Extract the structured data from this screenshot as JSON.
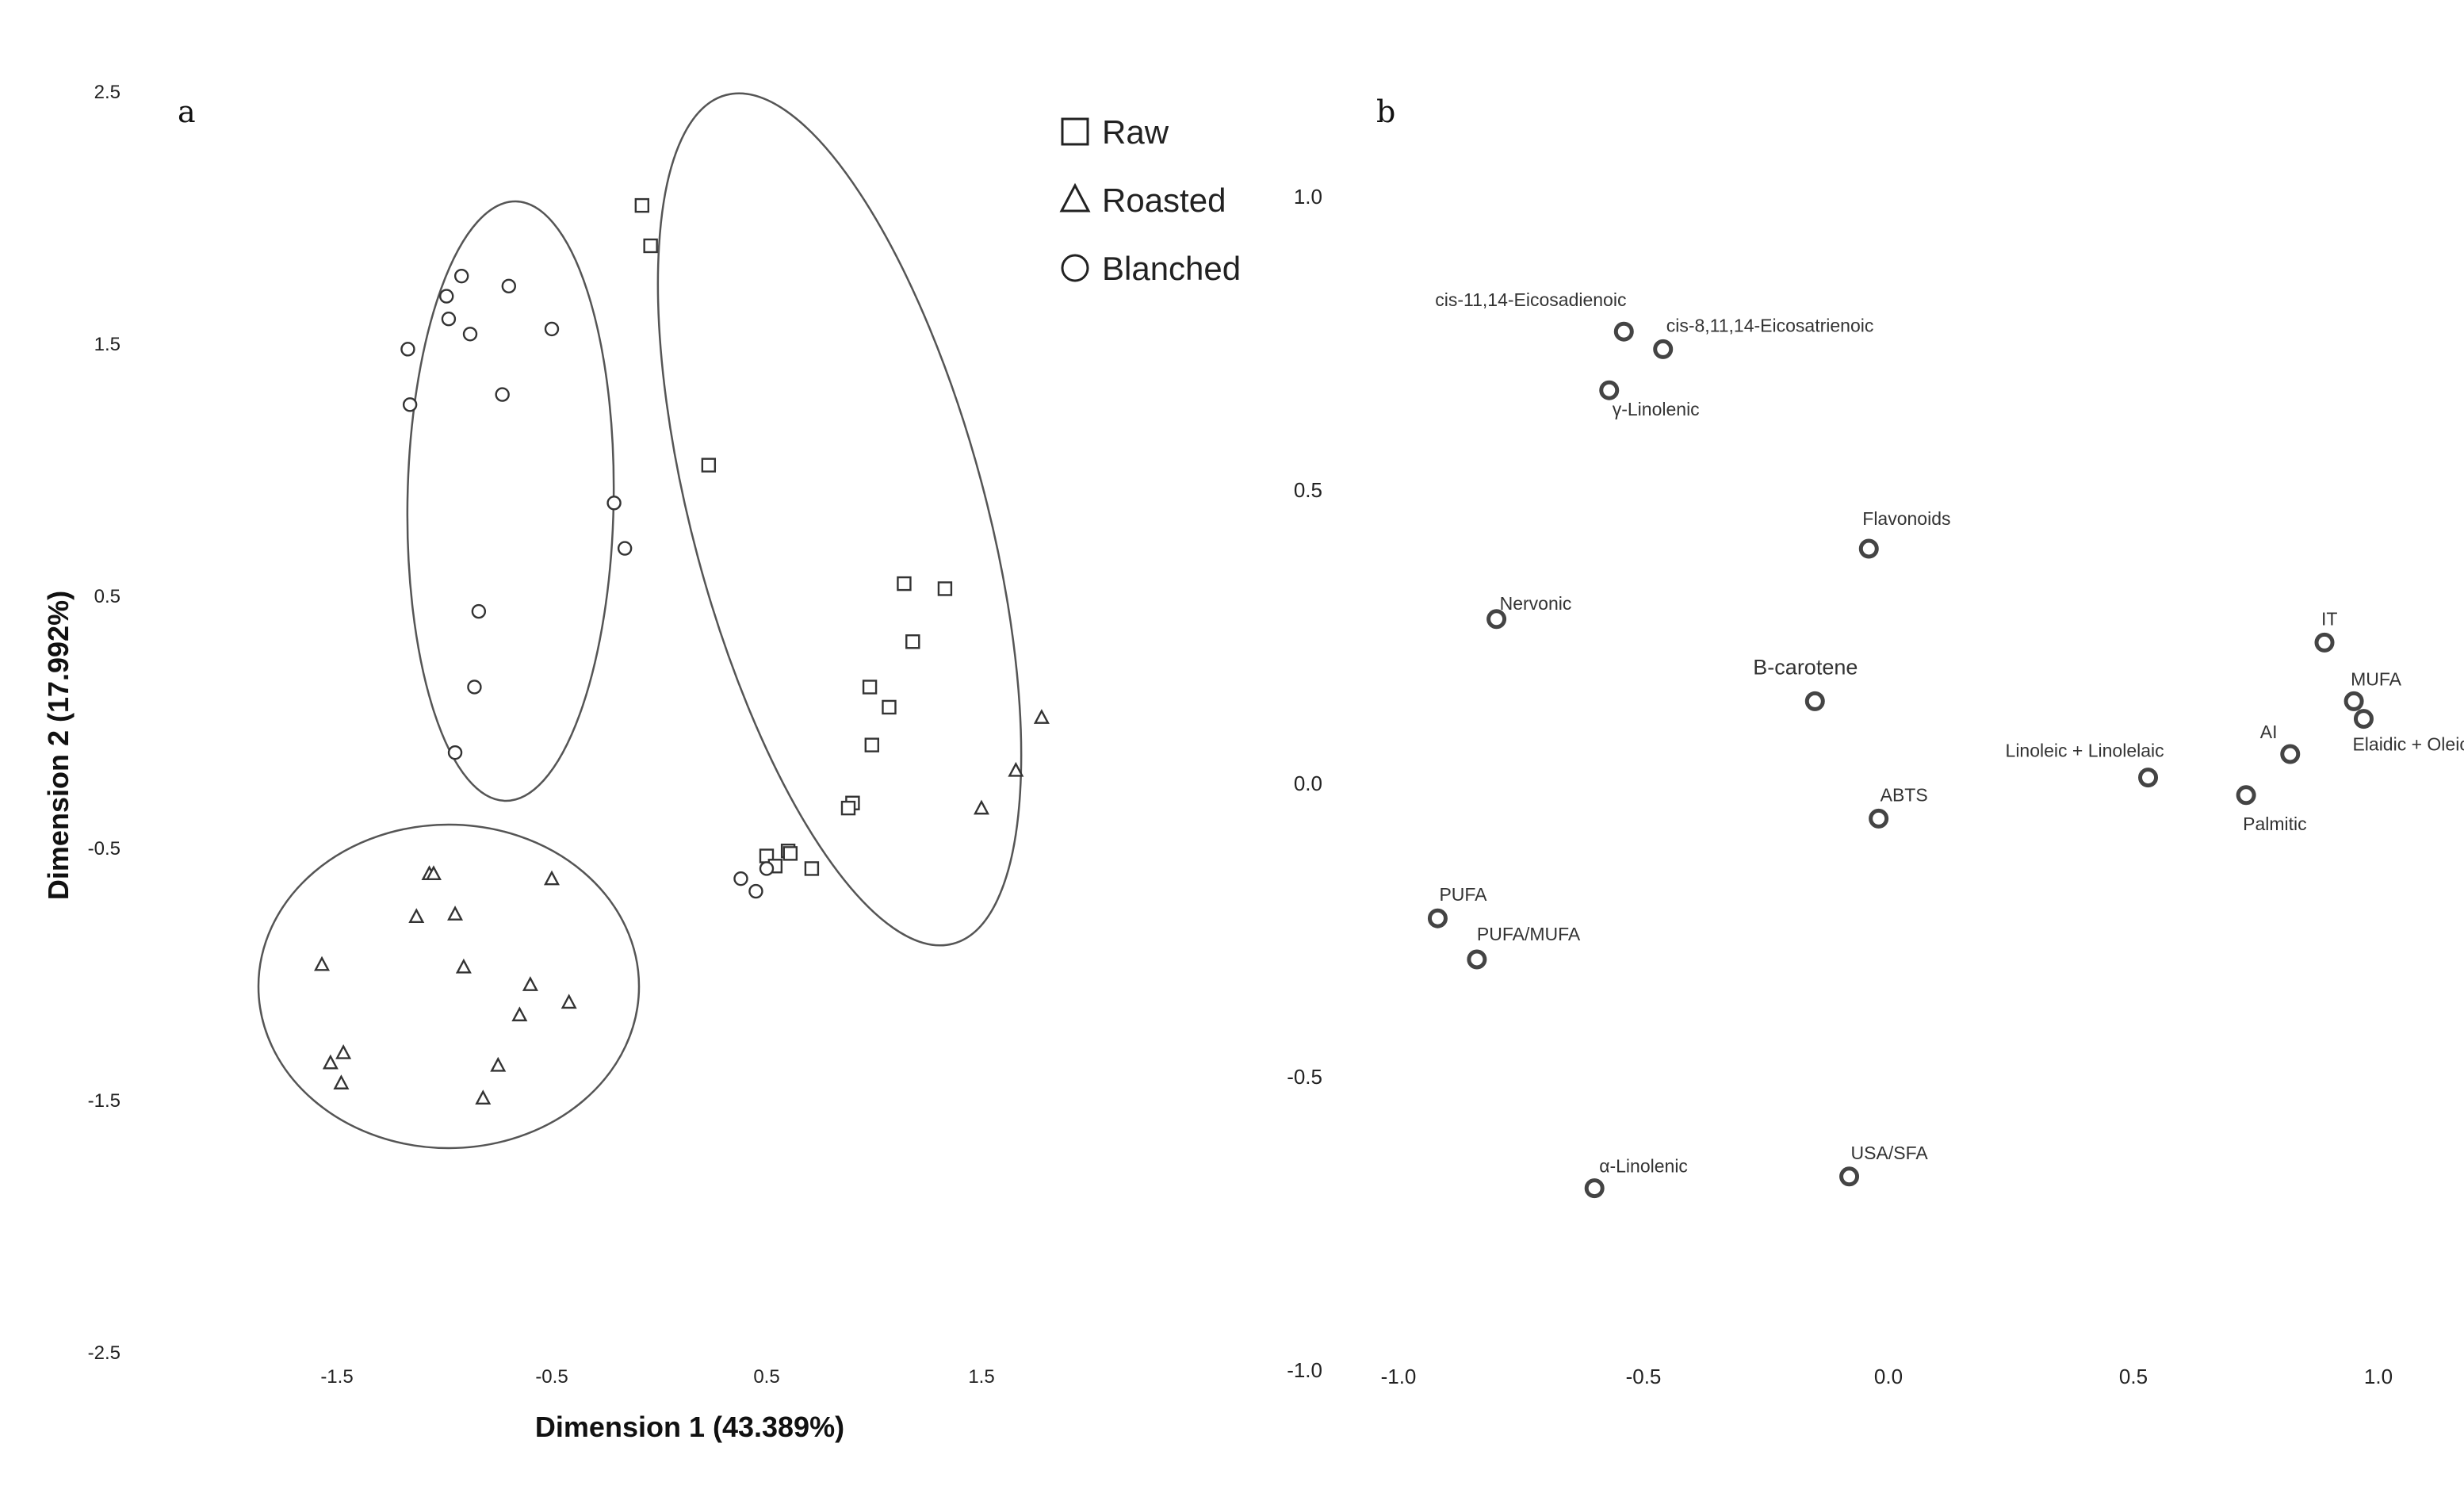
{
  "chart_data": [
    {
      "panel": "a",
      "type": "scatter",
      "xlabel": "Dimension 1 (43.389%)",
      "ylabel": "Dimension 2 (17.992%)",
      "xticks": [
        "-1.5",
        "-0.5",
        "0.5",
        "1.5"
      ],
      "yticks": [
        "2.5",
        "1.5",
        "0.5",
        "-0.5",
        "-1.5",
        "-2.5"
      ],
      "xlim": [
        -2.3,
        2.3
      ],
      "ylim": [
        -2.5,
        2.5
      ],
      "legend_position": "top-right",
      "series": [
        {
          "name": "Raw",
          "marker": "square",
          "points": [
            [
              -0.08,
              2.05
            ],
            [
              -0.04,
              1.89
            ],
            [
              0.23,
              1.02
            ],
            [
              1.14,
              0.55
            ],
            [
              1.33,
              0.53
            ],
            [
              1.18,
              0.32
            ],
            [
              0.98,
              0.14
            ],
            [
              1.07,
              0.06
            ],
            [
              0.99,
              -0.09
            ],
            [
              0.9,
              -0.32
            ],
            [
              0.88,
              -0.34
            ],
            [
              0.5,
              -0.53
            ],
            [
              0.6,
              -0.51
            ],
            [
              0.61,
              -0.52
            ],
            [
              0.54,
              -0.57
            ],
            [
              0.71,
              -0.58
            ]
          ]
        },
        {
          "name": "Roasted",
          "marker": "triangle",
          "points": [
            [
              -1.07,
              -0.6
            ],
            [
              -1.05,
              -0.6
            ],
            [
              -1.13,
              -0.77
            ],
            [
              -0.95,
              -0.76
            ],
            [
              -0.5,
              -0.62
            ],
            [
              -1.57,
              -0.96
            ],
            [
              -0.91,
              -0.97
            ],
            [
              -0.6,
              -1.04
            ],
            [
              -0.42,
              -1.11
            ],
            [
              -0.65,
              -1.16
            ],
            [
              -1.47,
              -1.31
            ],
            [
              -1.53,
              -1.35
            ],
            [
              -0.75,
              -1.36
            ],
            [
              -1.48,
              -1.43
            ],
            [
              -0.82,
              -1.49
            ],
            [
              1.5,
              -0.34
            ],
            [
              1.66,
              -0.19
            ],
            [
              1.78,
              0.02
            ]
          ]
        },
        {
          "name": "Blanched",
          "marker": "circle",
          "points": [
            [
              -0.92,
              1.77
            ],
            [
              -0.7,
              1.73
            ],
            [
              -0.99,
              1.69
            ],
            [
              -0.98,
              1.6
            ],
            [
              -0.88,
              1.54
            ],
            [
              -0.5,
              1.56
            ],
            [
              -1.17,
              1.48
            ],
            [
              -0.73,
              1.3
            ],
            [
              -1.16,
              1.26
            ],
            [
              -0.21,
              0.87
            ],
            [
              -0.16,
              0.69
            ],
            [
              -0.84,
              0.44
            ],
            [
              -0.86,
              0.14
            ],
            [
              -0.95,
              -0.12
            ],
            [
              0.38,
              -0.62
            ],
            [
              0.45,
              -0.67
            ],
            [
              0.5,
              -0.58
            ]
          ]
        }
      ]
    },
    {
      "panel": "b",
      "type": "scatter",
      "xlabel": "",
      "ylabel": "",
      "xticks": [
        "-1.0",
        "-0.5",
        "0.0",
        "0.5",
        "1.0"
      ],
      "yticks": [
        "1.0",
        "0.5",
        "0.0",
        "-0.5",
        "-1.0"
      ],
      "xlim": [
        -1.0,
        1.0
      ],
      "ylim": [
        -1.0,
        1.0
      ],
      "points": [
        {
          "label": "cis-11,14-Eicosadienoic",
          "x": -0.54,
          "y": 0.77
        },
        {
          "label": "cis-8,11,14-Eicosatrienoic",
          "x": -0.46,
          "y": 0.74
        },
        {
          "label": "γ-Linolenic",
          "x": -0.57,
          "y": 0.67
        },
        {
          "label": "Flavonoids",
          "x": -0.04,
          "y": 0.4
        },
        {
          "label": "Nervonic",
          "x": -0.8,
          "y": 0.28
        },
        {
          "label": "B-carotene",
          "x": -0.15,
          "y": 0.14
        },
        {
          "label": "IT",
          "x": 0.89,
          "y": 0.24
        },
        {
          "label": "MUFA",
          "x": 0.95,
          "y": 0.14
        },
        {
          "label": "Elaidic + Oleic",
          "x": 0.97,
          "y": 0.11
        },
        {
          "label": "AI",
          "x": 0.82,
          "y": 0.05
        },
        {
          "label": "Linoleic + Linolelaic",
          "x": 0.53,
          "y": 0.01
        },
        {
          "label": "Palmitic",
          "x": 0.73,
          "y": -0.02
        },
        {
          "label": "ABTS",
          "x": -0.02,
          "y": -0.06
        },
        {
          "label": "PUFA",
          "x": -0.92,
          "y": -0.23
        },
        {
          "label": "PUFA/MUFA",
          "x": -0.84,
          "y": -0.3
        },
        {
          "label": "α-Linolenic",
          "x": -0.6,
          "y": -0.69
        },
        {
          "label": "USA/SFA",
          "x": -0.08,
          "y": -0.67
        }
      ]
    }
  ]
}
